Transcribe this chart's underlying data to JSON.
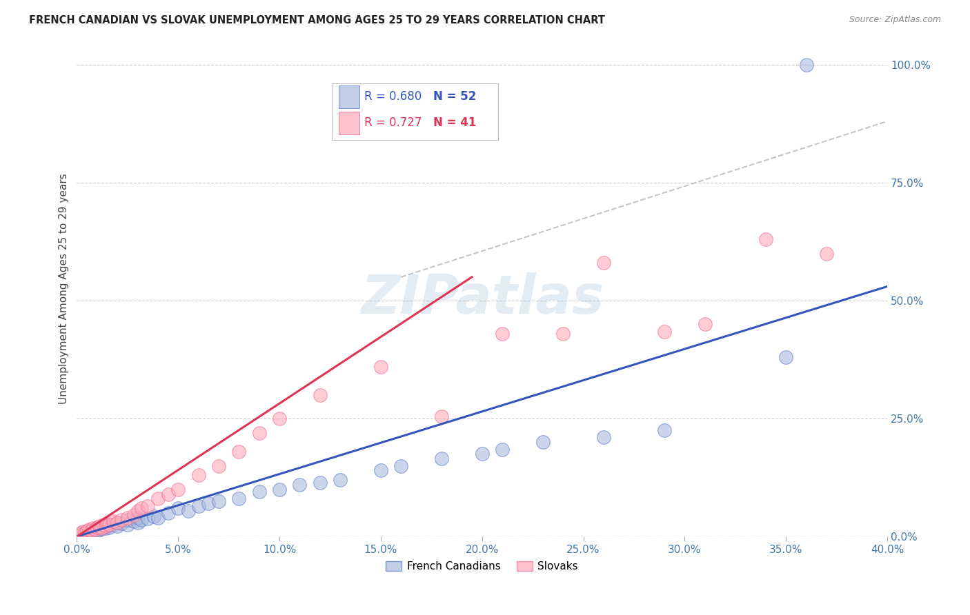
{
  "title": "FRENCH CANADIAN VS SLOVAK UNEMPLOYMENT AMONG AGES 25 TO 29 YEARS CORRELATION CHART",
  "source": "Source: ZipAtlas.com",
  "ylabel": "Unemployment Among Ages 25 to 29 years",
  "xlim": [
    0.0,
    0.4
  ],
  "ylim": [
    0.0,
    1.05
  ],
  "legend_r1": "R = 0.680",
  "legend_n1": "N = 52",
  "legend_r2": "R = 0.727",
  "legend_n2": "N = 41",
  "blue_color": "#aabbdd",
  "pink_color": "#ffaabb",
  "blue_edge_color": "#5577cc",
  "pink_edge_color": "#ee6688",
  "blue_line_color": "#3355bb",
  "pink_line_color": "#dd3355",
  "dash_line_color": "#bbbbbb",
  "watermark_color": "#c8d8e8",
  "fc_scatter_x": [
    0.002,
    0.003,
    0.004,
    0.005,
    0.006,
    0.007,
    0.008,
    0.009,
    0.01,
    0.01,
    0.011,
    0.012,
    0.013,
    0.014,
    0.015,
    0.015,
    0.016,
    0.018,
    0.02,
    0.02,
    0.022,
    0.025,
    0.025,
    0.028,
    0.03,
    0.03,
    0.032,
    0.035,
    0.038,
    0.04,
    0.045,
    0.05,
    0.055,
    0.06,
    0.065,
    0.07,
    0.08,
    0.09,
    0.1,
    0.11,
    0.12,
    0.13,
    0.15,
    0.16,
    0.18,
    0.2,
    0.21,
    0.23,
    0.26,
    0.29,
    0.35,
    0.36
  ],
  "fc_scatter_y": [
    0.005,
    0.008,
    0.005,
    0.01,
    0.008,
    0.012,
    0.01,
    0.015,
    0.012,
    0.018,
    0.015,
    0.018,
    0.02,
    0.018,
    0.022,
    0.025,
    0.02,
    0.025,
    0.022,
    0.03,
    0.028,
    0.025,
    0.035,
    0.032,
    0.03,
    0.04,
    0.035,
    0.038,
    0.042,
    0.04,
    0.05,
    0.06,
    0.055,
    0.065,
    0.07,
    0.075,
    0.08,
    0.095,
    0.1,
    0.11,
    0.115,
    0.12,
    0.14,
    0.15,
    0.165,
    0.175,
    0.185,
    0.2,
    0.21,
    0.225,
    0.38,
    1.0
  ],
  "sk_scatter_x": [
    0.002,
    0.003,
    0.004,
    0.005,
    0.006,
    0.007,
    0.008,
    0.009,
    0.01,
    0.011,
    0.012,
    0.013,
    0.014,
    0.015,
    0.016,
    0.018,
    0.02,
    0.022,
    0.025,
    0.028,
    0.03,
    0.032,
    0.035,
    0.04,
    0.045,
    0.05,
    0.06,
    0.07,
    0.08,
    0.09,
    0.1,
    0.12,
    0.15,
    0.18,
    0.21,
    0.24,
    0.26,
    0.29,
    0.31,
    0.34,
    0.37
  ],
  "sk_scatter_y": [
    0.008,
    0.01,
    0.008,
    0.012,
    0.015,
    0.012,
    0.018,
    0.015,
    0.02,
    0.022,
    0.018,
    0.025,
    0.022,
    0.028,
    0.025,
    0.032,
    0.03,
    0.035,
    0.04,
    0.045,
    0.055,
    0.06,
    0.065,
    0.08,
    0.09,
    0.1,
    0.13,
    0.15,
    0.18,
    0.22,
    0.25,
    0.3,
    0.36,
    0.255,
    0.43,
    0.43,
    0.58,
    0.435,
    0.45,
    0.63,
    0.6
  ],
  "fc_line_x": [
    0.0,
    0.4
  ],
  "fc_line_y": [
    0.0,
    0.53
  ],
  "sk_line_x": [
    0.0,
    0.195
  ],
  "sk_line_y": [
    0.0,
    0.55
  ],
  "dash_line_x": [
    0.16,
    0.4
  ],
  "dash_line_y": [
    0.55,
    0.88
  ]
}
